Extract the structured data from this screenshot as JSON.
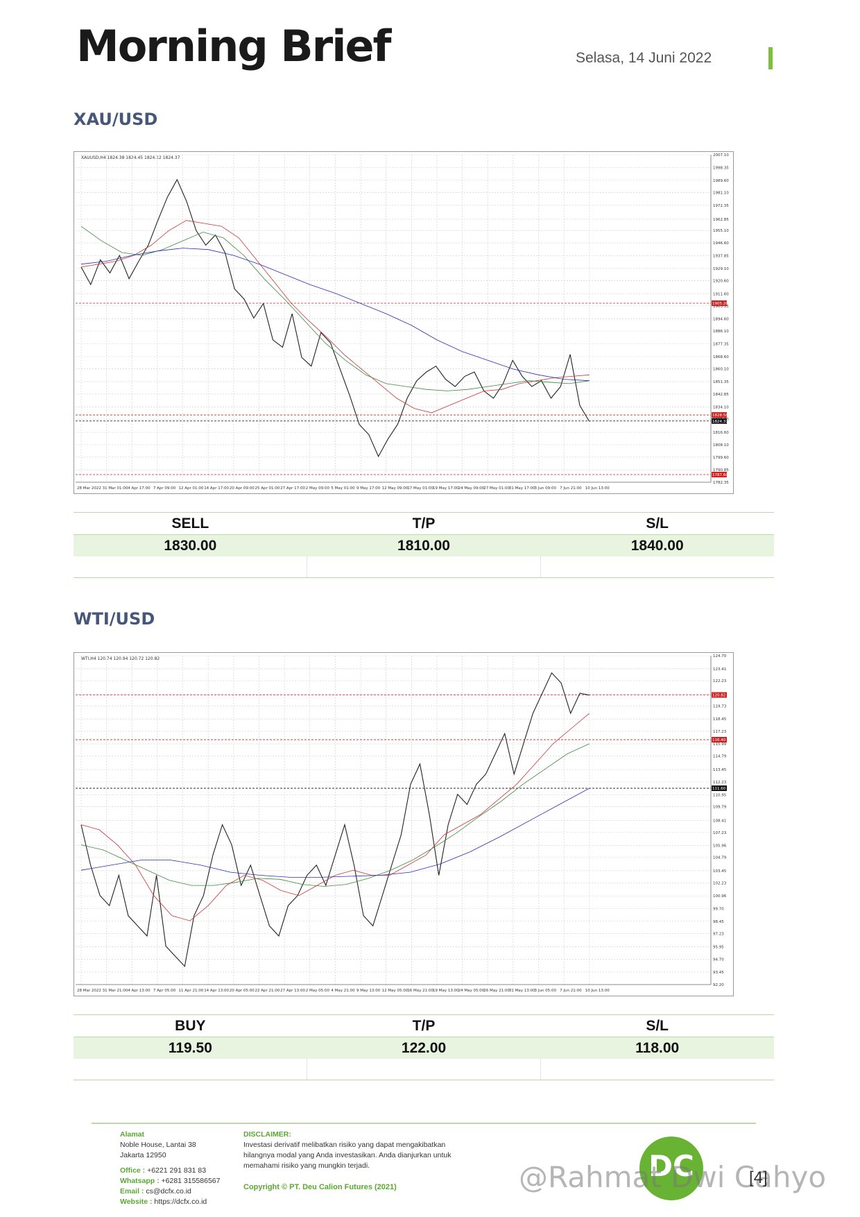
{
  "header": {
    "brand": "Morning Brief",
    "date": "Selasa, 14 Juni 2022"
  },
  "xau": {
    "title": "XAU/USD",
    "chart_label": "XAUUSD,H4 1824.38 1824.45 1824.12 1824.37",
    "signal": {
      "h1": "SELL",
      "h2": "T/P",
      "h3": "S/L",
      "v1": "1830.00",
      "v2": "1810.00",
      "v3": "1840.00"
    }
  },
  "wti": {
    "title": "WTI/USD",
    "chart_label": "WTI,H4 120.74 120.94 120.72 120.82",
    "signal": {
      "h1": "BUY",
      "h2": "T/P",
      "h3": "S/L",
      "v1": "119.50",
      "v2": "122.00",
      "v3": "118.00"
    }
  },
  "chart_data": [
    {
      "type": "line",
      "symbol": "XAUUSD,H4",
      "y_ticks": [
        "2007.10",
        "1998.35",
        "1989.60",
        "1981.10",
        "1972.35",
        "1962.85",
        "1955.10",
        "1946.60",
        "1937.85",
        "1929.10",
        "1920.60",
        "1911.60",
        "1903.35",
        "1894.60",
        "1886.10",
        "1877.35",
        "1868.60",
        "1860.10",
        "1851.35",
        "1842.85",
        "1834.10",
        "1825.60",
        "1816.60",
        "1808.10",
        "1799.60",
        "1790.85",
        "1782.35"
      ],
      "x_ticks": [
        "28 Mar 2022",
        "31 Mar 01:00",
        "4 Apr 17:00",
        "7 Apr 09:00",
        "12 Apr 01:00",
        "14 Apr 17:00",
        "20 Apr 09:00",
        "25 Apr 01:00",
        "27 Apr 17:00",
        "2 May 09:00",
        "5 May 01:00",
        "9 May 17:00",
        "12 May 09:00",
        "17 May 01:00",
        "19 May 17:00",
        "24 May 09:00",
        "27 May 01:00",
        "31 May 17:00",
        "3 Jun 09:00",
        "7 Jun 21:00",
        "10 Jun 13:00"
      ],
      "ylim": [
        1782.35,
        2007.1
      ],
      "levels": [
        {
          "value": 1905.2,
          "label": "1905.20"
        },
        {
          "value": 1828.5,
          "label": "1828.50"
        },
        {
          "value": 1824.37,
          "label": "1824.37"
        },
        {
          "value": 1787.6,
          "label": "1787.60"
        }
      ],
      "series": [
        {
          "values": [
            1930,
            1918,
            1935,
            1926,
            1938,
            1922,
            1934,
            1945,
            1962,
            1978,
            1990,
            1975,
            1955,
            1945,
            1952,
            1940,
            1915,
            1908,
            1895,
            1905,
            1880,
            1875,
            1898,
            1868,
            1862,
            1885,
            1878,
            1860,
            1842,
            1822,
            1815,
            1800,
            1812,
            1822,
            1840,
            1852,
            1858,
            1862,
            1853,
            1848,
            1855,
            1858,
            1845,
            1840,
            1850,
            1866,
            1855,
            1848,
            1852,
            1840,
            1848,
            1870,
            1835,
            1824
          ]
        },
        {
          "values": [
            1930,
            1932,
            1934,
            1938,
            1945,
            1955,
            1962,
            1960,
            1958,
            1950,
            1935,
            1920,
            1905,
            1893,
            1882,
            1870,
            1860,
            1850,
            1840,
            1833,
            1830,
            1835,
            1840,
            1845,
            1846,
            1850,
            1852,
            1854,
            1855,
            1856
          ]
        },
        {
          "values": [
            1958,
            1948,
            1940,
            1938,
            1942,
            1948,
            1954,
            1950,
            1938,
            1922,
            1908,
            1893,
            1878,
            1866,
            1856,
            1850,
            1848,
            1846,
            1845,
            1846,
            1848,
            1850,
            1852,
            1851,
            1850,
            1852
          ]
        },
        {
          "values": [
            1932,
            1934,
            1938,
            1941,
            1943,
            1942,
            1938,
            1932,
            1925,
            1918,
            1912,
            1905,
            1898,
            1890,
            1880,
            1872,
            1866,
            1860,
            1856,
            1853,
            1852
          ]
        }
      ]
    },
    {
      "type": "line",
      "symbol": "WTI,H4",
      "y_ticks": [
        "124.70",
        "123.41",
        "122.23",
        "120.82",
        "119.73",
        "118.45",
        "117.23",
        "115.99",
        "114.79",
        "113.45",
        "112.23",
        "110.95",
        "109.79",
        "108.41",
        "107.23",
        "105.96",
        "104.79",
        "103.45",
        "102.23",
        "100.96",
        "99.70",
        "98.45",
        "97.23",
        "95.95",
        "94.70",
        "93.45",
        "92.20"
      ],
      "x_ticks": [
        "28 Mar 2022",
        "31 Mar 21:00",
        "4 Apr 13:00",
        "7 Apr 05:00",
        "11 Apr 21:00",
        "14 Apr 13:00",
        "20 Apr 05:00",
        "22 Apr 21:00",
        "27 Apr 13:00",
        "2 May 05:00",
        "4 May 21:00",
        "9 May 13:00",
        "12 May 05:00",
        "16 May 21:00",
        "19 May 13:00",
        "24 May 05:00",
        "26 May 21:00",
        "31 May 13:00",
        "3 Jun 05:00",
        "7 Jun 21:00",
        "10 Jun 13:00"
      ],
      "ylim": [
        92.2,
        124.7
      ],
      "levels": [
        {
          "value": 120.82,
          "label": "120.82"
        },
        {
          "value": 116.4,
          "label": "116.40"
        },
        {
          "value": 111.6,
          "label": "111.60"
        }
      ],
      "series": [
        {
          "values": [
            108,
            104,
            101,
            100,
            103,
            99,
            98,
            97,
            103,
            96,
            95,
            94,
            99,
            101,
            105,
            108,
            106,
            102,
            104,
            101,
            98,
            97,
            100,
            101,
            103,
            104,
            102,
            105,
            108,
            104,
            99,
            98,
            101,
            104,
            107,
            112,
            114,
            109,
            103,
            108,
            111,
            110,
            112,
            113,
            115,
            117,
            113,
            116,
            119,
            121,
            123,
            122,
            119,
            121,
            120.8
          ]
        },
        {
          "values": [
            108,
            107.5,
            106,
            104,
            101,
            99,
            98.5,
            100,
            102,
            103,
            102.5,
            101.5,
            101,
            102,
            103,
            103.5,
            103,
            103,
            104,
            105,
            107,
            108,
            109,
            110.5,
            112,
            114,
            116,
            117.5,
            119
          ]
        },
        {
          "values": [
            106,
            105.5,
            104.5,
            103.5,
            102.5,
            102,
            102,
            102.3,
            102.7,
            102.6,
            102.1,
            101.9,
            102.1,
            102.7,
            103.5,
            104.5,
            105.8,
            107.2,
            108.8,
            110.3,
            112,
            113.5,
            115,
            116
          ]
        },
        {
          "values": [
            103.5,
            104,
            104.5,
            104.5,
            104,
            103.3,
            103,
            102.8,
            102.8,
            102.9,
            103,
            103.3,
            104.1,
            105.3,
            106.8,
            108.4,
            110,
            111.6
          ]
        }
      ]
    }
  ],
  "footer": {
    "address_label": "Alamat",
    "address_line1": "Noble House, Lantai 38",
    "address_line2": "Jakarta 12950",
    "office_label": "Office :",
    "office": " +6221 291 831 83",
    "whatsapp_label": "Whatsapp :",
    "whatsapp": " +6281 315586567",
    "email_label": "Email :",
    "email": " cs@dcfx.co.id",
    "website_label": "Website :",
    "website": " https://dcfx.co.id",
    "disclaimer_label": "DISCLAIMER:",
    "disclaimer_text": "Investasi derivatif melibatkan risiko yang dapat mengakibatkan hilangnya modal yang Anda investasikan. Anda dianjurkan untuk memahami risiko yang mungkin terjadi.",
    "copyright": "Copyright © PT. Deu Calion Futures (2021)",
    "logo_text": "DC",
    "page_number": "[4]",
    "watermark": "@Rahmat Dwi Cahyo"
  }
}
